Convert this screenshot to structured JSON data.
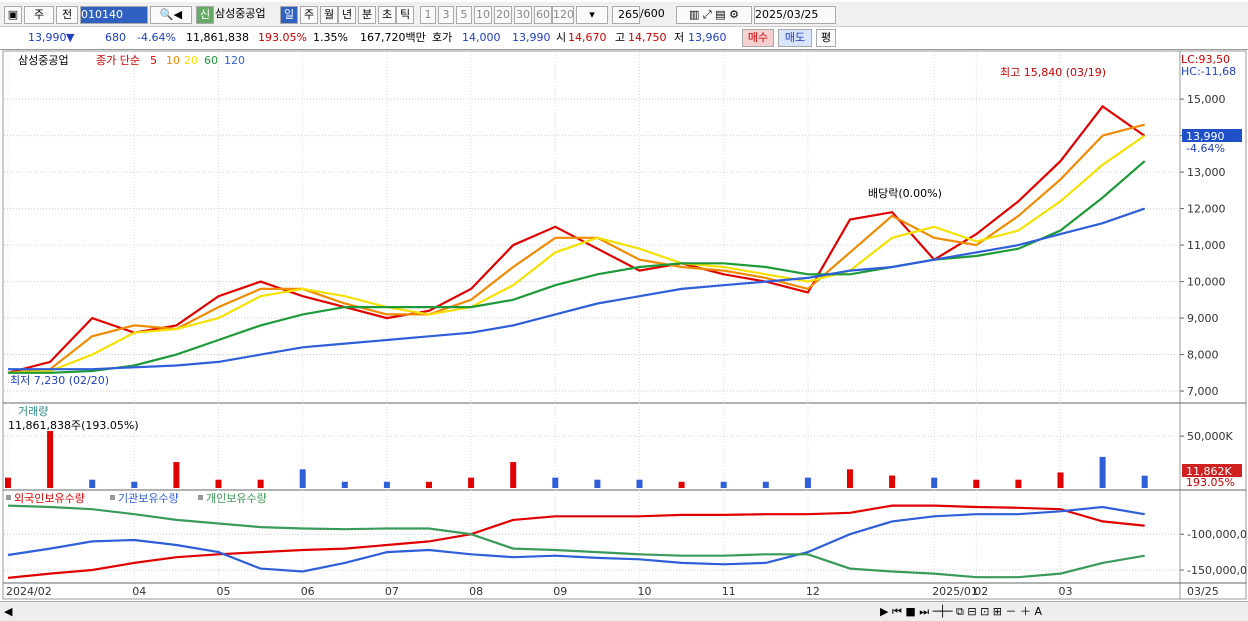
{
  "toolbar": {
    "items": [
      "주",
      "전",
      "010140",
      "삼성중공업",
      "일",
      "주",
      "월",
      "년",
      "분",
      "초",
      "틱",
      "1",
      "3",
      "5",
      "10",
      "20",
      "30",
      "60",
      "120",
      "265",
      "/600",
      "2025/03/25"
    ]
  },
  "quote": {
    "items": [
      "13,990",
      "▼",
      "680",
      "-4.64%",
      "11,861,838",
      "193.05%",
      "1.35%",
      "167,720백만",
      "호가",
      "14,000",
      "13,990",
      "시",
      "14,670",
      "고",
      "14,750",
      "저",
      "13,960",
      "매수",
      "매도",
      "평"
    ]
  },
  "chart_data": [
    {
      "type": "line",
      "title": "삼성중공업",
      "subtitle": "종가 단순",
      "categories": [
        "2024/02",
        null,
        null,
        "04",
        null,
        "05",
        null,
        "06",
        null,
        "07",
        null,
        "08",
        null,
        "09",
        null,
        "10",
        null,
        "11",
        null,
        "12",
        null,
        null,
        "2025/01",
        "02",
        null,
        "03",
        null,
        null
      ],
      "series": [
        {
          "name": "5",
          "color": "#e00000",
          "values": [
            7500,
            7800,
            9000,
            8600,
            8800,
            9600,
            10000,
            9600,
            9300,
            9000,
            9200,
            9800,
            11000,
            11500,
            10900,
            10300,
            10500,
            10200,
            10000,
            9700,
            11700,
            11900,
            10600,
            11300,
            12200,
            13300,
            14800,
            13990
          ]
        },
        {
          "name": "10",
          "color": "#f08a00",
          "values": [
            7500,
            7600,
            8500,
            8800,
            8700,
            9300,
            9800,
            9800,
            9400,
            9100,
            9100,
            9500,
            10400,
            11200,
            11200,
            10600,
            10400,
            10300,
            10100,
            9800,
            10800,
            11800,
            11200,
            11000,
            11800,
            12800,
            14000,
            14300
          ]
        },
        {
          "name": "20",
          "color": "#f5e000",
          "values": [
            7500,
            7550,
            8000,
            8600,
            8700,
            9000,
            9600,
            9800,
            9600,
            9300,
            9100,
            9300,
            9900,
            10800,
            11200,
            10900,
            10500,
            10400,
            10200,
            10000,
            10300,
            11200,
            11500,
            11100,
            11400,
            12200,
            13200,
            14000
          ]
        },
        {
          "name": "60",
          "color": "#1e9a3a",
          "values": [
            7500,
            7500,
            7550,
            7700,
            8000,
            8400,
            8800,
            9100,
            9300,
            9300,
            9300,
            9300,
            9500,
            9900,
            10200,
            10400,
            10500,
            10500,
            10400,
            10200,
            10200,
            10400,
            10600,
            10700,
            10900,
            11400,
            12300,
            13300
          ]
        },
        {
          "name": "120",
          "color": "#2e5fd8",
          "values": [
            7600,
            7600,
            7600,
            7650,
            7700,
            7800,
            8000,
            8200,
            8300,
            8400,
            8500,
            8600,
            8800,
            9100,
            9400,
            9600,
            9800,
            9900,
            10000,
            10100,
            10300,
            10400,
            10600,
            10800,
            11000,
            11300,
            11600,
            12000
          ]
        }
      ],
      "ylim": [
        6700,
        16290
      ],
      "yticks": [
        {
          "value": 7000,
          "label": "7,000"
        },
        {
          "value": 8000,
          "label": "8,000"
        },
        {
          "value": 9000,
          "label": "9,000"
        },
        {
          "value": 10000,
          "label": "10,000"
        },
        {
          "value": 11000,
          "label": "11,000"
        },
        {
          "value": 12000,
          "label": "12,000"
        },
        {
          "value": 13000,
          "label": "13,000"
        },
        {
          "value": 14000,
          "label": "14,000"
        },
        {
          "value": 15000,
          "label": "15,000"
        }
      ],
      "grid": true,
      "annotations": {
        "high": "최고 15,840 (03/19)",
        "low": "최저 7,230 (02/20)",
        "dividend": "배당락(0.00%)"
      },
      "right_labels": [
        "LC:93,50",
        "HC:-11,68"
      ],
      "last_price": "13,990",
      "last_change": "-4.64%",
      "end_date": "03/25"
    },
    {
      "type": "bar",
      "title": "거래량",
      "subtitle": "11,861,838주(193.05%)",
      "values": [
        10000,
        55000,
        8000,
        6000,
        25000,
        8000,
        8000,
        18000,
        6000,
        6000,
        6000,
        10000,
        25000,
        10000,
        8000,
        8000,
        6000,
        6000,
        6000,
        10000,
        18000,
        12000,
        10000,
        8000,
        8000,
        15000,
        30000,
        11862
      ],
      "colors": [
        "#e00000",
        "#e00000",
        "#2e5fd8",
        "#2e5fd8",
        "#e00000",
        "#e00000",
        "#e00000",
        "#2e5fd8",
        "#2e5fd8",
        "#2e5fd8",
        "#e00000",
        "#e00000",
        "#e00000",
        "#2e5fd8",
        "#2e5fd8",
        "#2e5fd8",
        "#e00000",
        "#2e5fd8",
        "#2e5fd8",
        "#2e5fd8",
        "#e00000",
        "#e00000",
        "#2e5fd8",
        "#e00000",
        "#e00000",
        "#e00000",
        "#2e5fd8",
        "#2e5fd8"
      ],
      "ylim": [
        0,
        80000
      ],
      "yticks": [
        {
          "value": 50000,
          "label": "50,000K"
        }
      ],
      "last_label": "11,862K",
      "last_ratio": "193.05%"
    },
    {
      "type": "line",
      "series": [
        {
          "name": "외국인보유수량",
          "color": "#e00000",
          "values": [
            -161000000,
            -155000000,
            -150000000,
            -140000000,
            -132000000,
            -128000000,
            -125000000,
            -122000000,
            -120000000,
            -115000000,
            -110000000,
            -100000000,
            -80000000,
            -75000000,
            -75000000,
            -75000000,
            -73000000,
            -73000000,
            -72000000,
            -72000000,
            -70000000,
            -60000000,
            -60000000,
            -62000000,
            -63000000,
            -65000000,
            -82000000,
            -88000000
          ]
        },
        {
          "name": "기관보유수량",
          "color": "#2e5fd8",
          "values": [
            -129000000,
            -120000000,
            -110000000,
            -108000000,
            -115000000,
            -125000000,
            -148000000,
            -152000000,
            -140000000,
            -125000000,
            -122000000,
            -128000000,
            -132000000,
            -130000000,
            -133000000,
            -135000000,
            -140000000,
            -142000000,
            -140000000,
            -125000000,
            -100000000,
            -82000000,
            -75000000,
            -72000000,
            -72000000,
            -68000000,
            -62000000,
            -72000000
          ]
        },
        {
          "name": "개인보유수량",
          "color": "#3a9a5a",
          "values": [
            -60000000,
            -62000000,
            -65000000,
            -72000000,
            -80000000,
            -85000000,
            -90000000,
            -92000000,
            -93000000,
            -92000000,
            -92000000,
            -100000000,
            -120000000,
            -122000000,
            -125000000,
            -128000000,
            -130000000,
            -130000000,
            -128000000,
            -128000000,
            -148000000,
            -152000000,
            -155000000,
            -160000000,
            -160000000,
            -155000000,
            -140000000,
            -130000000
          ]
        }
      ],
      "ylim": [
        -166700000,
        -41000000
      ],
      "yticks": [
        {
          "value": -100000000,
          "label": "-100,000,0"
        },
        {
          "value": -150000000,
          "label": "-150,000,0"
        }
      ]
    }
  ]
}
